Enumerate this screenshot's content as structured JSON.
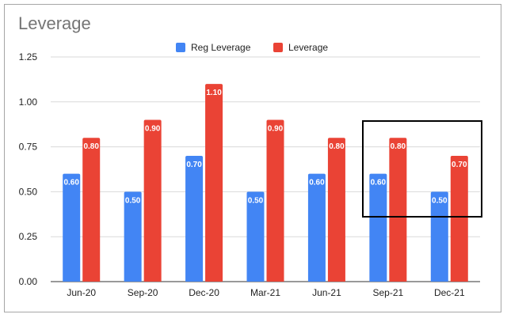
{
  "chart_data": {
    "type": "bar",
    "title": "Leverage",
    "categories": [
      "Jun-20",
      "Sep-20",
      "Dec-20",
      "Mar-21",
      "Jun-21",
      "Sep-21",
      "Dec-21"
    ],
    "series": [
      {
        "name": "Reg Leverage",
        "color": "#4285f4",
        "values": [
          0.6,
          0.5,
          0.7,
          0.5,
          0.6,
          0.6,
          0.5
        ],
        "labels": [
          "0.60",
          "0.50",
          "0.70",
          "0.50",
          "0.60",
          "0.60",
          "0.50"
        ]
      },
      {
        "name": "Leverage",
        "color": "#ea4335",
        "values": [
          0.8,
          0.9,
          1.1,
          0.9,
          0.8,
          0.8,
          0.7
        ],
        "labels": [
          "0.80",
          "0.90",
          "1.10",
          "0.90",
          "0.80",
          "0.80",
          "0.70"
        ]
      }
    ],
    "yticks": [
      "0.00",
      "0.25",
      "0.50",
      "0.75",
      "1.00",
      "1.25"
    ],
    "ylim": [
      0,
      1.25
    ],
    "grid": true,
    "legend": "top-center",
    "xlabel": "",
    "ylabel": "",
    "annotation": {
      "type": "box",
      "highlight": [
        "Sep-21",
        "Dec-21"
      ]
    }
  }
}
